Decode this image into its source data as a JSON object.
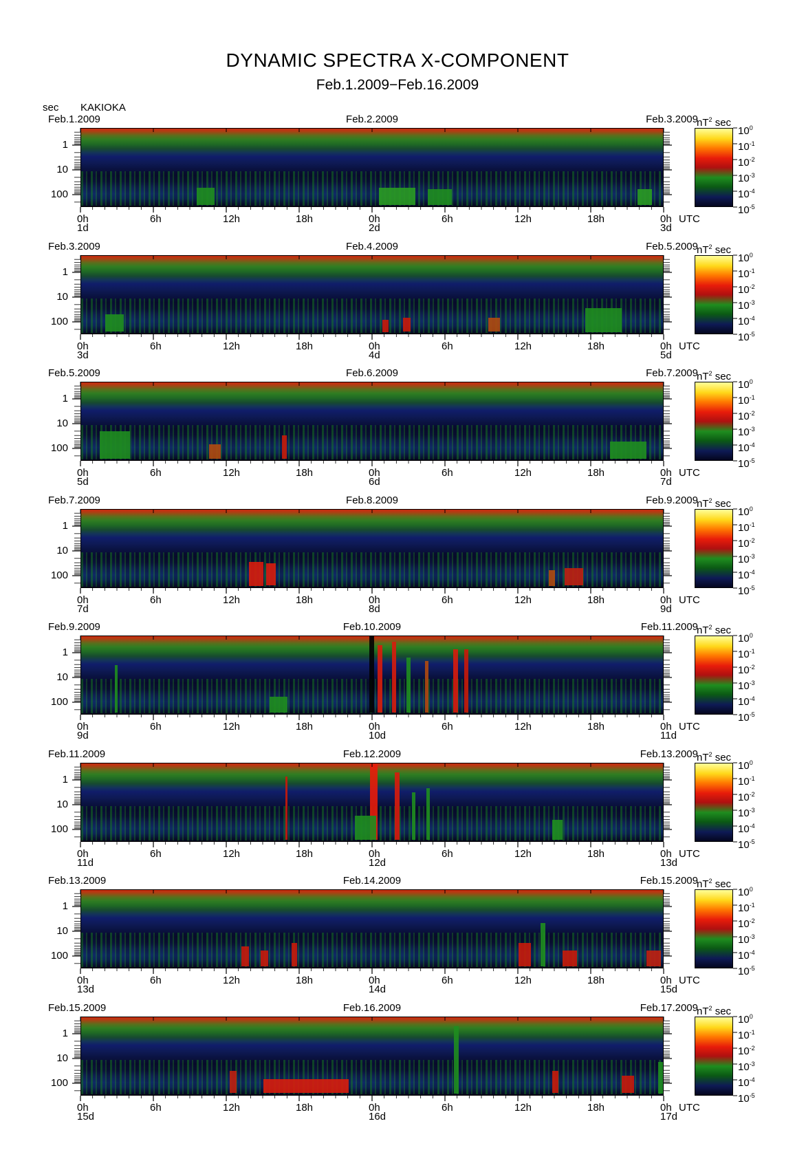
{
  "title": "DYNAMIC SPECTRA X-COMPONENT",
  "subtitle": "Feb.1.2009−Feb.16.2009",
  "yaxis_unit": "sec",
  "station": "KAKIOKA",
  "colorbar": {
    "unit_prefix": "nT",
    "unit_sup": "2",
    "unit_suffix": "sec",
    "tick_base": "10",
    "tick_exponents": [
      "0",
      "-1",
      "-2",
      "-3",
      "-4",
      "-5"
    ],
    "colors": [
      "#ffff9a",
      "#ffd81a",
      "#ff7a00",
      "#e81c0a",
      "#b01010",
      "#1f8d1f",
      "#0b5a14",
      "#0e1a55",
      "#04061e"
    ]
  },
  "chart_data": {
    "type": "heatmap",
    "x_unit": "UTC",
    "x_ticks": [
      "0h",
      "6h",
      "12h",
      "18h",
      "0h",
      "6h",
      "12h",
      "18h",
      "0h"
    ],
    "y_ticks": [
      "1",
      "10",
      "100"
    ],
    "y_scale": "log",
    "panels": [
      {
        "left_date": "Feb.1.2009",
        "mid_date": "Feb.2.2009",
        "right_date": "Feb.3.2009",
        "day_labels": [
          "1d",
          "2d",
          "3d"
        ]
      },
      {
        "left_date": "Feb.3.2009",
        "mid_date": "Feb.4.2009",
        "right_date": "Feb.5.2009",
        "day_labels": [
          "3d",
          "4d",
          "5d"
        ]
      },
      {
        "left_date": "Feb.5.2009",
        "mid_date": "Feb.6.2009",
        "right_date": "Feb.7.2009",
        "day_labels": [
          "5d",
          "6d",
          "7d"
        ]
      },
      {
        "left_date": "Feb.7.2009",
        "mid_date": "Feb.8.2009",
        "right_date": "Feb.9.2009",
        "day_labels": [
          "7d",
          "8d",
          "9d"
        ]
      },
      {
        "left_date": "Feb.9.2009",
        "mid_date": "Feb.10.2009",
        "right_date": "Feb.11.2009",
        "day_labels": [
          "9d",
          "10d",
          "11d"
        ]
      },
      {
        "left_date": "Feb.11.2009",
        "mid_date": "Feb.12.2009",
        "right_date": "Feb.13.2009",
        "day_labels": [
          "11d",
          "12d",
          "13d"
        ]
      },
      {
        "left_date": "Feb.13.2009",
        "mid_date": "Feb.14.2009",
        "right_date": "Feb.15.2009",
        "day_labels": [
          "13d",
          "14d",
          "15d"
        ]
      },
      {
        "left_date": "Feb.15.2009",
        "mid_date": "Feb.16.2009",
        "right_date": "Feb.17.2009",
        "day_labels": [
          "15d",
          "16d",
          "17d"
        ]
      }
    ],
    "bursts": [
      [
        {
          "t": 9.5,
          "w": 1.5,
          "c": "#1f8d1f",
          "d": 0.22
        },
        {
          "t": 24.5,
          "w": 3,
          "c": "#2a9a22",
          "d": 0.22
        },
        {
          "t": 28.5,
          "w": 2,
          "c": "#1f8d1f",
          "d": 0.2
        },
        {
          "t": 45.8,
          "w": 1.2,
          "c": "#2a9a22",
          "d": 0.2
        }
      ],
      [
        {
          "t": 2,
          "w": 1.5,
          "c": "#1f8d1f",
          "d": 0.22
        },
        {
          "t": 26.5,
          "w": 0.6,
          "c": "#c81a0a",
          "d": 0.18
        },
        {
          "t": 24.8,
          "w": 0.5,
          "c": "#c81a0a",
          "d": 0.15
        },
        {
          "t": 41.5,
          "w": 3,
          "c": "#1f8d1f",
          "d": 0.3
        },
        {
          "t": 33.5,
          "w": 1,
          "c": "#b04a10",
          "d": 0.18
        }
      ],
      [
        {
          "t": 1.5,
          "w": 2.5,
          "c": "#1f8d1f",
          "d": 0.35
        },
        {
          "t": 10.5,
          "w": 1,
          "c": "#b04a10",
          "d": 0.18
        },
        {
          "t": 16.5,
          "w": 0.4,
          "c": "#c81a0a",
          "d": 0.3
        },
        {
          "t": 43.5,
          "w": 3,
          "c": "#1f8d1f",
          "d": 0.22
        }
      ],
      [
        {
          "t": 13.8,
          "w": 1.2,
          "c": "#d81c0c",
          "d": 0.3
        },
        {
          "t": 15.2,
          "w": 0.8,
          "c": "#d81c0c",
          "d": 0.28
        },
        {
          "t": 39.8,
          "w": 1.5,
          "c": "#c02010",
          "d": 0.22
        },
        {
          "t": 38.5,
          "w": 0.5,
          "c": "#b04a10",
          "d": 0.2
        }
      ],
      [
        {
          "t": 23.7,
          "w": 0.4,
          "c": "#020203",
          "d": 1.0
        },
        {
          "t": 24.4,
          "w": 0.4,
          "c": "#d81c0c",
          "d": 0.85
        },
        {
          "t": 25.6,
          "w": 0.35,
          "c": "#d81c0c",
          "d": 0.9
        },
        {
          "t": 26.8,
          "w": 0.3,
          "c": "#1f8d1f",
          "d": 0.7
        },
        {
          "t": 28.3,
          "w": 0.3,
          "c": "#b04a10",
          "d": 0.65
        },
        {
          "t": 30.6,
          "w": 0.4,
          "c": "#d81c0c",
          "d": 0.8
        },
        {
          "t": 31.5,
          "w": 0.35,
          "c": "#c81a0a",
          "d": 0.8
        },
        {
          "t": 2.8,
          "w": 0.2,
          "c": "#1f8d1f",
          "d": 0.6
        },
        {
          "t": 15.5,
          "w": 1.5,
          "c": "#1f8d1f",
          "d": 0.2
        }
      ],
      [
        {
          "t": 23.8,
          "w": 0.6,
          "c": "#e81c0a",
          "d": 0.95
        },
        {
          "t": 25.8,
          "w": 0.4,
          "c": "#d81c0c",
          "d": 0.85
        },
        {
          "t": 27.2,
          "w": 0.3,
          "c": "#1f8d1f",
          "d": 0.6
        },
        {
          "t": 28.4,
          "w": 0.3,
          "c": "#1f8d1f",
          "d": 0.65
        },
        {
          "t": 16.8,
          "w": 0.2,
          "c": "#c81a0a",
          "d": 0.8
        },
        {
          "t": 22.5,
          "w": 1.8,
          "c": "#1f8d1f",
          "d": 0.3
        },
        {
          "t": 38.8,
          "w": 0.8,
          "c": "#1f8d1f",
          "d": 0.25
        }
      ],
      [
        {
          "t": 13.2,
          "w": 0.6,
          "c": "#c81a0a",
          "d": 0.25
        },
        {
          "t": 14.8,
          "w": 0.6,
          "c": "#c81a0a",
          "d": 0.2
        },
        {
          "t": 17.3,
          "w": 0.5,
          "c": "#c81a0a",
          "d": 0.3
        },
        {
          "t": 36,
          "w": 1,
          "c": "#c81a0a",
          "d": 0.3
        },
        {
          "t": 37.8,
          "w": 0.4,
          "c": "#1f8d1f",
          "d": 0.55
        },
        {
          "t": 39.6,
          "w": 1.2,
          "c": "#c81a0a",
          "d": 0.2
        },
        {
          "t": 46.5,
          "w": 1.2,
          "c": "#c02010",
          "d": 0.2
        }
      ],
      [
        {
          "t": 15,
          "w": 7,
          "c": "#d81c0c",
          "d": 0.18
        },
        {
          "t": 12.2,
          "w": 0.6,
          "c": "#c02010",
          "d": 0.28
        },
        {
          "t": 30.7,
          "w": 0.4,
          "c": "#1f8d1f",
          "d": 0.85
        },
        {
          "t": 38.8,
          "w": 0.5,
          "c": "#c81a0a",
          "d": 0.28
        },
        {
          "t": 44.5,
          "w": 1,
          "c": "#c81a0a",
          "d": 0.22
        },
        {
          "t": 47.5,
          "w": 0.5,
          "c": "#1f8d1f",
          "d": 0.4
        }
      ]
    ]
  }
}
